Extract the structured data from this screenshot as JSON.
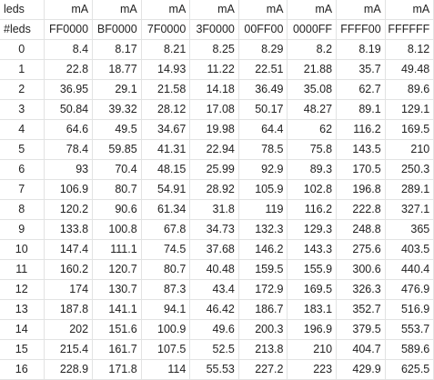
{
  "sheet": {
    "header_row": [
      "leds",
      "mA",
      "mA",
      "mA",
      "mA",
      "mA",
      "mA",
      "mA",
      "mA"
    ],
    "color_row": [
      "#leds",
      "FF0000",
      "BF0000",
      "7F0000",
      "3F0000",
      "00FF00",
      "0000FF",
      "FFFF00",
      "FFFFFF"
    ],
    "rows": [
      [
        "0",
        "8.4",
        "8.17",
        "8.21",
        "8.25",
        "8.29",
        "8.2",
        "8.19",
        "8.12"
      ],
      [
        "1",
        "22.8",
        "18.77",
        "14.93",
        "11.22",
        "22.51",
        "21.88",
        "35.7",
        "49.48"
      ],
      [
        "2",
        "36.95",
        "29.1",
        "21.58",
        "14.18",
        "36.49",
        "35.08",
        "62.7",
        "89.6"
      ],
      [
        "3",
        "50.84",
        "39.32",
        "28.12",
        "17.08",
        "50.17",
        "48.27",
        "89.1",
        "129.1"
      ],
      [
        "4",
        "64.6",
        "49.5",
        "34.67",
        "19.98",
        "64.4",
        "62",
        "116.2",
        "169.5"
      ],
      [
        "5",
        "78.4",
        "59.85",
        "41.31",
        "22.94",
        "78.5",
        "75.8",
        "143.5",
        "210"
      ],
      [
        "6",
        "93",
        "70.4",
        "48.15",
        "25.99",
        "92.9",
        "89.3",
        "170.5",
        "250.3"
      ],
      [
        "7",
        "106.9",
        "80.7",
        "54.91",
        "28.92",
        "105.9",
        "102.8",
        "196.8",
        "289.1"
      ],
      [
        "8",
        "120.2",
        "90.6",
        "61.34",
        "31.8",
        "119",
        "116.2",
        "222.8",
        "327.1"
      ],
      [
        "9",
        "133.8",
        "100.8",
        "67.8",
        "34.73",
        "132.3",
        "129.3",
        "248.8",
        "365"
      ],
      [
        "10",
        "147.4",
        "111.1",
        "74.5",
        "37.68",
        "146.2",
        "143.3",
        "275.6",
        "403.5"
      ],
      [
        "11",
        "160.2",
        "120.7",
        "80.7",
        "40.48",
        "159.5",
        "155.9",
        "300.6",
        "440.4"
      ],
      [
        "12",
        "174",
        "130.7",
        "87.3",
        "43.4",
        "172.9",
        "169.5",
        "326.3",
        "476.9"
      ],
      [
        "13",
        "187.8",
        "141.1",
        "94.1",
        "46.42",
        "186.7",
        "183.1",
        "352.7",
        "516.9"
      ],
      [
        "14",
        "202",
        "151.6",
        "100.9",
        "49.6",
        "200.3",
        "196.9",
        "379.5",
        "553.7"
      ],
      [
        "15",
        "215.4",
        "161.7",
        "107.5",
        "52.5",
        "213.8",
        "210",
        "404.7",
        "589.6"
      ],
      [
        "16",
        "228.9",
        "171.8",
        "114",
        "55.53",
        "227.2",
        "223",
        "429.9",
        "625.5"
      ]
    ]
  }
}
